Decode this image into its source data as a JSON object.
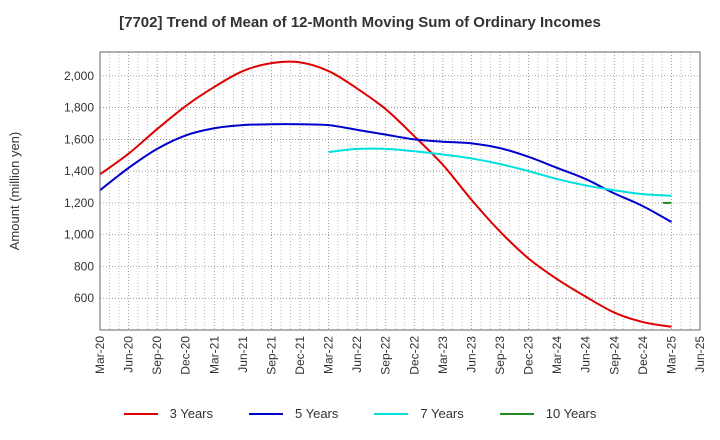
{
  "chart_data": {
    "type": "line",
    "title": "[7702]  Trend of Mean of 12-Month Moving Sum of Ordinary Incomes",
    "xlabel": "",
    "ylabel": "Amount (million yen)",
    "x_tick_labels": [
      "Mar-20",
      "Jun-20",
      "Sep-20",
      "Dec-20",
      "Mar-21",
      "Jun-21",
      "Sep-21",
      "Dec-21",
      "Mar-22",
      "Jun-22",
      "Sep-22",
      "Dec-22",
      "Mar-23",
      "Jun-23",
      "Sep-23",
      "Dec-23",
      "Mar-24",
      "Jun-24",
      "Sep-24",
      "Dec-24",
      "Mar-25",
      "Jun-25"
    ],
    "y_ticks": [
      600,
      800,
      1000,
      1200,
      1400,
      1600,
      1800,
      2000
    ],
    "y_tick_labels": [
      "600",
      "800",
      "1,000",
      "1,200",
      "1,400",
      "1,600",
      "1,800",
      "2,000"
    ],
    "ylim": [
      400,
      2150
    ],
    "grid": true,
    "legend_position": "bottom",
    "series": [
      {
        "name": "3 Years",
        "color": "#e00000",
        "x": [
          0,
          1,
          2,
          3,
          4,
          5,
          6,
          7,
          8,
          9,
          10,
          11,
          12,
          13,
          14,
          15,
          16,
          17,
          18,
          19,
          20
        ],
        "values": [
          1380,
          1510,
          1665,
          1810,
          1930,
          2030,
          2080,
          2085,
          2030,
          1920,
          1790,
          1620,
          1440,
          1220,
          1020,
          850,
          720,
          610,
          510,
          450,
          420
        ]
      },
      {
        "name": "5 Years",
        "color": "#0000cc",
        "x": [
          0,
          1,
          2,
          3,
          4,
          5,
          6,
          7,
          8,
          9,
          10,
          11,
          12,
          13,
          14,
          15,
          16,
          17,
          18,
          19,
          20
        ],
        "values": [
          1280,
          1420,
          1540,
          1625,
          1670,
          1690,
          1695,
          1695,
          1690,
          1660,
          1630,
          1600,
          1585,
          1575,
          1545,
          1490,
          1420,
          1350,
          1260,
          1180,
          1080
        ]
      },
      {
        "name": "7 Years",
        "color": "#00e0e0",
        "x": [
          8,
          9,
          10,
          11,
          12,
          13,
          14,
          15,
          16,
          17,
          18,
          19,
          20
        ],
        "values": [
          1520,
          1540,
          1540,
          1525,
          1505,
          1480,
          1445,
          1400,
          1350,
          1310,
          1280,
          1255,
          1245
        ]
      },
      {
        "name": "10 Years",
        "color": "#228b22",
        "x": [
          19.7,
          20
        ],
        "values": [
          1200,
          1200
        ]
      }
    ]
  }
}
